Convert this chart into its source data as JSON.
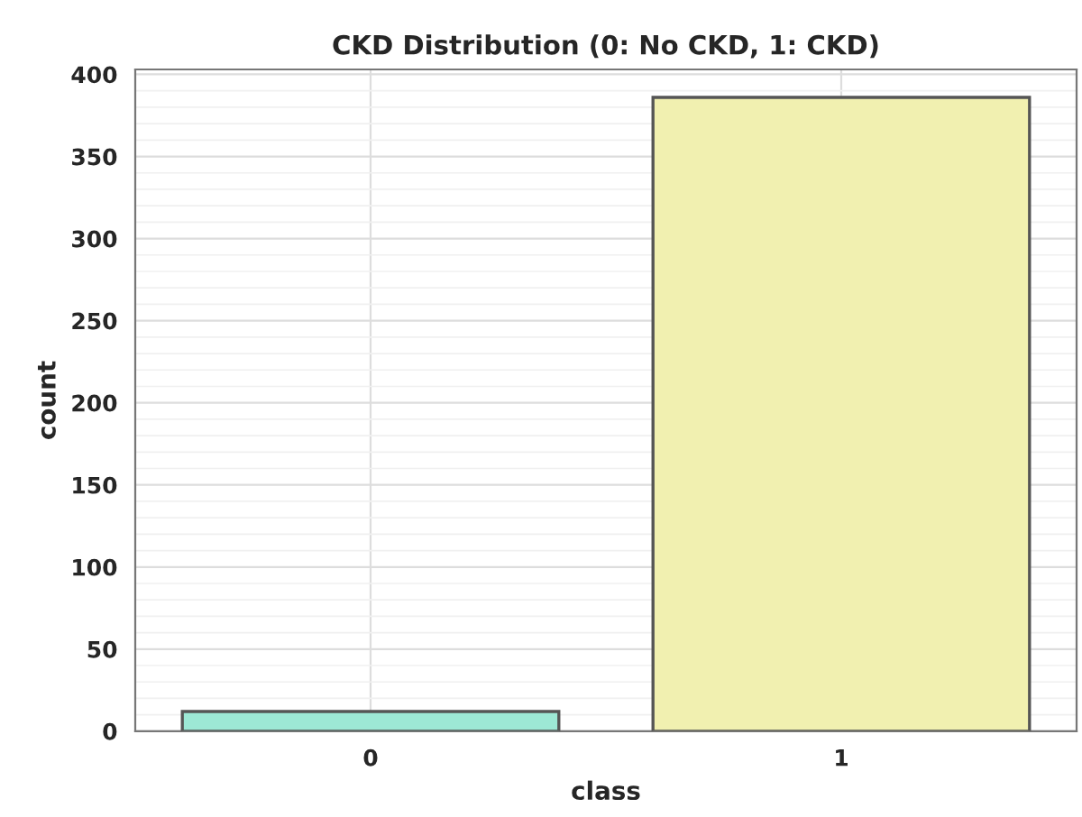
{
  "chart_data": {
    "type": "bar",
    "title": "CKD Distribution (0: No CKD, 1: CKD)",
    "xlabel": "class",
    "ylabel": "count",
    "categories": [
      "0",
      "1"
    ],
    "values": [
      12,
      386
    ],
    "colors": [
      "#9de8d5",
      "#f1f0b0"
    ],
    "ylim": [
      0,
      403
    ],
    "yticks": [
      0,
      50,
      100,
      150,
      200,
      250,
      300,
      350,
      400
    ],
    "grid": true
  }
}
